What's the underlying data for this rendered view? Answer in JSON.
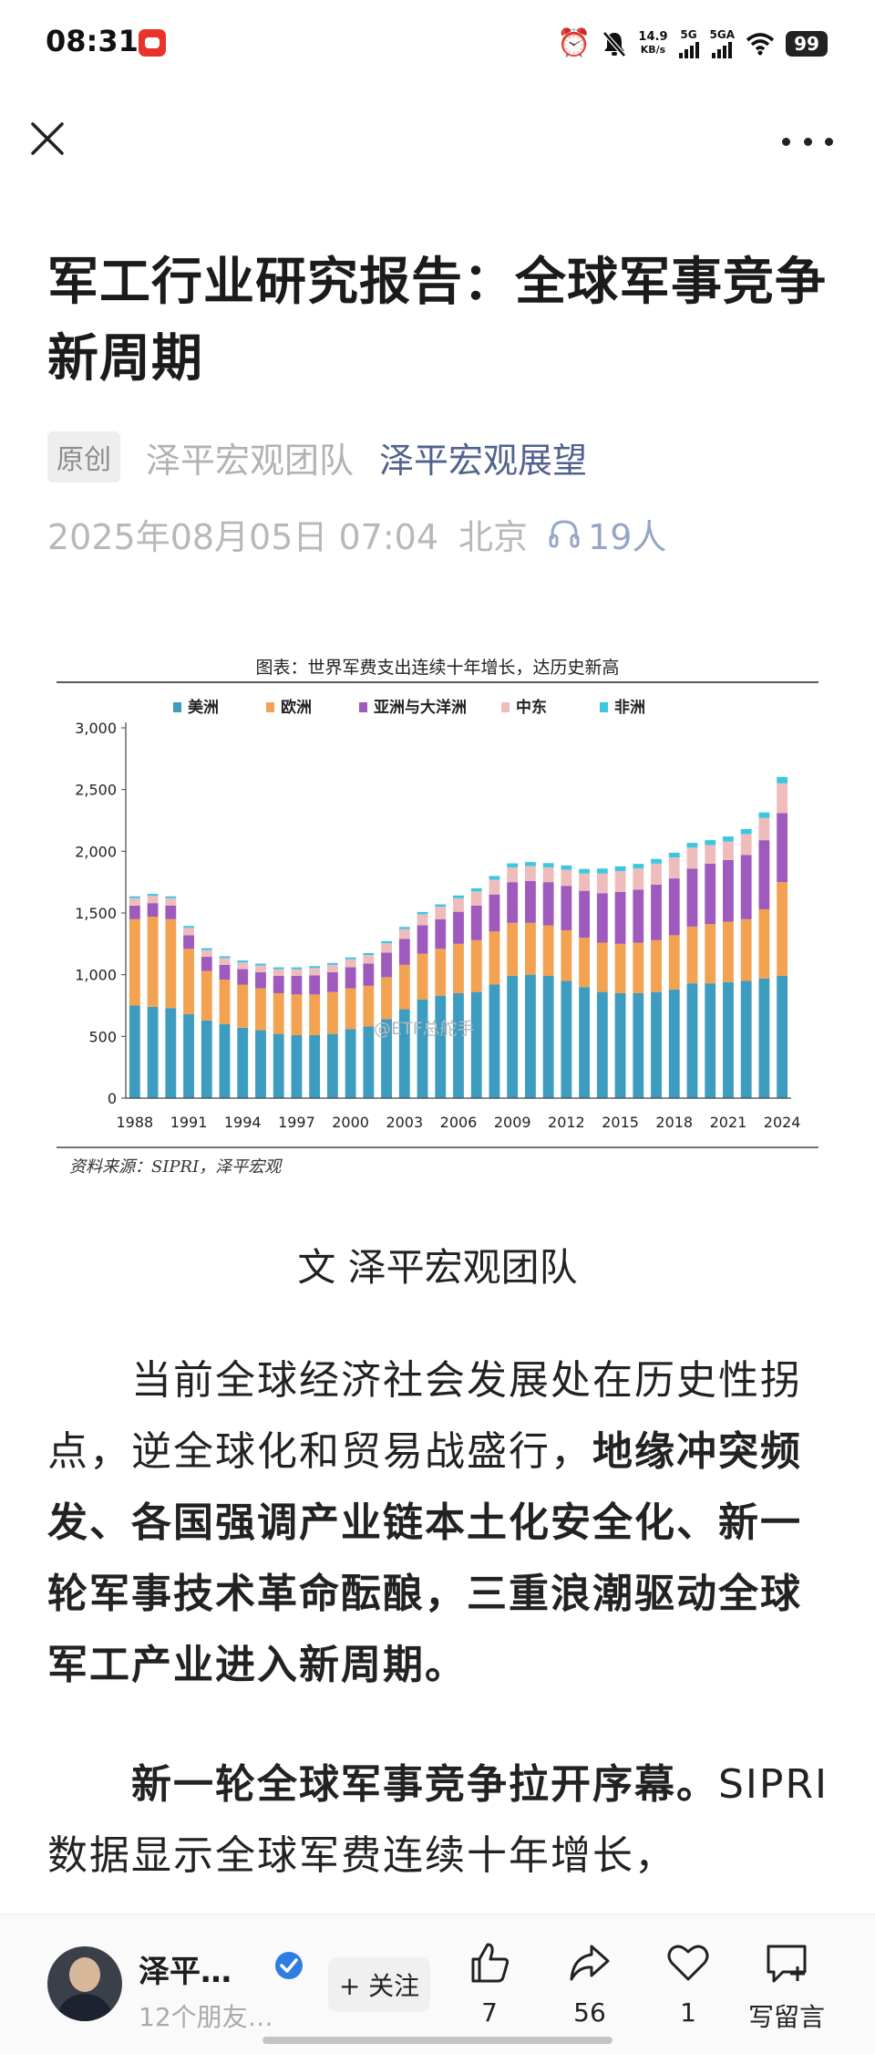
{
  "status_bar": {
    "time": "08:31",
    "net_speed_value": "14.9",
    "net_speed_unit": "KB/s",
    "sim1": "5G",
    "sim2": "5GA",
    "battery": "99"
  },
  "article": {
    "title": "军工行业研究报告：全球军事竞争新周期",
    "original_badge": "原创",
    "author": "泽平宏观团队",
    "account": "泽平宏观展望",
    "datetime": "2025年08月05日 07:04",
    "location": "北京",
    "listeners": "19人",
    "byline": "文 泽平宏观团队",
    "para1_normal": "当前全球经济社会发展处在历史性拐点，逆全球化和贸易战盛行，",
    "para1_bold": "地缘冲突频发、各国强调产业链本土化安全化、新一轮军事技术革命酝酿，三重浪潮驱动全球军工产业进入新周期。",
    "para2_bold": "新一轮全球军事竞争拉开序幕。",
    "para2_normal": "SIPRI数据显示全球军费连续十年增长，"
  },
  "chart_data": {
    "type": "bar",
    "stacked": true,
    "title": "图表：世界军费支出连续十年增长，达历史新高",
    "source": "资料来源：SIPRI，泽平宏观",
    "watermark": "@ETF总舵手",
    "ylim": [
      0,
      3000
    ],
    "yticks": [
      0,
      500,
      1000,
      1500,
      2000,
      2500,
      3000
    ],
    "ytick_labels": [
      "0",
      "500",
      "1,000",
      "1,500",
      "2,000",
      "2,500",
      "3,000"
    ],
    "xtick_labels": [
      "1988",
      "1991",
      "1994",
      "1997",
      "2000",
      "2003",
      "2006",
      "2009",
      "2012",
      "2015",
      "2018",
      "2021",
      "2024"
    ],
    "legend_position": "top-left",
    "categories": [
      1988,
      1989,
      1990,
      1991,
      1992,
      1993,
      1994,
      1995,
      1996,
      1997,
      1998,
      1999,
      2000,
      2001,
      2002,
      2003,
      2004,
      2005,
      2006,
      2007,
      2008,
      2009,
      2010,
      2011,
      2012,
      2013,
      2014,
      2015,
      2016,
      2017,
      2018,
      2019,
      2020,
      2021,
      2022,
      2023,
      2024
    ],
    "series": [
      {
        "name": "美洲",
        "color": "#3d9cc0",
        "values": [
          750,
          740,
          730,
          680,
          630,
          600,
          570,
          550,
          520,
          510,
          510,
          520,
          560,
          580,
          640,
          720,
          800,
          830,
          850,
          860,
          920,
          990,
          1000,
          990,
          950,
          900,
          860,
          850,
          850,
          860,
          880,
          930,
          930,
          940,
          950,
          970,
          990
        ]
      },
      {
        "name": "欧洲",
        "color": "#f2a250",
        "values": [
          700,
          730,
          720,
          530,
          400,
          360,
          350,
          340,
          330,
          330,
          330,
          340,
          330,
          330,
          340,
          360,
          370,
          380,
          400,
          420,
          430,
          430,
          420,
          410,
          410,
          400,
          400,
          400,
          410,
          420,
          440,
          460,
          480,
          490,
          500,
          560,
          760
        ]
      },
      {
        "name": "亚洲与大洋洲",
        "color": "#9e5bbd",
        "values": [
          110,
          110,
          110,
          110,
          115,
          120,
          125,
          130,
          140,
          150,
          155,
          160,
          170,
          180,
          200,
          210,
          230,
          240,
          260,
          280,
          300,
          330,
          340,
          350,
          360,
          380,
          400,
          420,
          430,
          450,
          460,
          470,
          490,
          500,
          520,
          560,
          560
        ]
      },
      {
        "name": "中东",
        "color": "#efbcbc",
        "values": [
          60,
          60,
          60,
          60,
          55,
          55,
          55,
          55,
          55,
          55,
          60,
          60,
          65,
          70,
          75,
          80,
          90,
          100,
          110,
          115,
          120,
          120,
          120,
          120,
          130,
          140,
          160,
          170,
          170,
          170,
          170,
          170,
          150,
          150,
          170,
          180,
          240
        ]
      },
      {
        "name": "非洲",
        "color": "#3cc7e0",
        "values": [
          15,
          15,
          15,
          15,
          15,
          15,
          15,
          15,
          15,
          15,
          15,
          15,
          15,
          15,
          17,
          17,
          18,
          20,
          22,
          25,
          30,
          32,
          33,
          34,
          35,
          37,
          40,
          38,
          38,
          38,
          38,
          38,
          40,
          40,
          40,
          45,
          52
        ]
      }
    ]
  },
  "bottom_bar": {
    "author_short": "泽平…",
    "friends": "12个朋友…",
    "follow_label": "+ 关注",
    "like_count": "7",
    "share_count": "56",
    "favorite_count": "1",
    "comment_label": "写留言"
  },
  "icons": {
    "close": "close-icon",
    "more": "more-icon",
    "alarm": "alarm-icon",
    "mute": "bell-muted-icon",
    "wifi": "wifi-icon",
    "listen": "headphones-icon",
    "verified": "verified-badge-icon",
    "like": "thumbs-up-icon",
    "share": "share-arrow-icon",
    "favorite": "heart-icon",
    "comment": "comment-plus-icon"
  }
}
